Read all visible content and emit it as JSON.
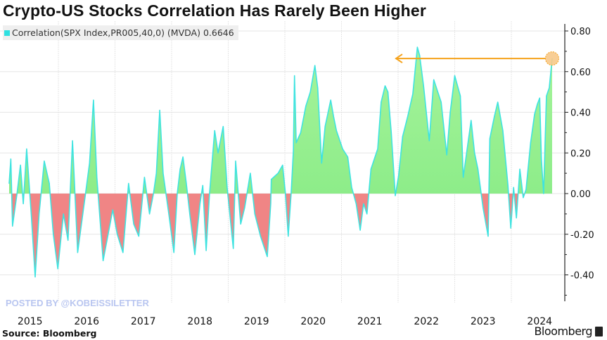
{
  "chart_data": {
    "type": "area",
    "title": "Crypto-US Stocks Correlation Has Rarely Been Higher",
    "legend": {
      "label": "Correlation(SPX Index,PR005,40,0) (MVDA) 0.6646",
      "placement": "top-left"
    },
    "source": "Source: Bloomberg",
    "brand": "Bloomberg",
    "watermark": "POSTED BY @KOBEISSILETTER",
    "x_tick_labels": [
      "2015",
      "2016",
      "2017",
      "2018",
      "2019",
      "2020",
      "2021",
      "2022",
      "2023",
      "2024"
    ],
    "y_tick_labels": [
      "0.80",
      "0.60",
      "0.40",
      "0.20",
      "0.00",
      "-0.20",
      "-0.40"
    ],
    "y_ticks": [
      0.8,
      0.6,
      0.4,
      0.2,
      0.0,
      -0.2,
      -0.4
    ],
    "ylim": [
      -0.52,
      0.84
    ],
    "xlim": [
      2015.0,
      2024.95
    ],
    "y_axis_side": "right",
    "grid": true,
    "colors": {
      "line": "#3fe3e0",
      "positive_fill": "#8ef08a",
      "negative_fill": "#f08585",
      "annotation": "#f5a21b",
      "marker_fill": "#f7c98a"
    },
    "annotation": {
      "type": "arrow",
      "from_x": 2024.72,
      "to_x": 2021.95,
      "y": 0.6646,
      "marker": "circle-at-latest-value"
    },
    "series": [
      {
        "x": [
          2015.13,
          2015.16,
          2015.19,
          2015.27,
          2015.33,
          2015.38,
          2015.44,
          2015.52,
          2015.59,
          2015.66,
          2015.75,
          2015.84,
          2015.91,
          2015.99,
          2016.09,
          2016.17,
          2016.25,
          2016.34,
          2016.48,
          2016.55,
          2016.62,
          2016.68,
          2016.79,
          2016.96,
          2017.04,
          2017.14,
          2017.24,
          2017.33,
          2017.42,
          2017.52,
          2017.61,
          2017.68,
          2017.73,
          2017.79,
          2017.85,
          2017.95,
          2018.04,
          2018.1,
          2018.15,
          2018.2,
          2018.26,
          2018.32,
          2018.41,
          2018.5,
          2018.55,
          2018.61,
          2018.67,
          2018.76,
          2018.82,
          2018.91,
          2018.98,
          2019.09,
          2019.13,
          2019.22,
          2019.29,
          2019.39,
          2019.47,
          2019.57,
          2019.69,
          2019.75,
          2019.76,
          2019.88,
          2019.96,
          2020.01,
          2020.06,
          2020.11,
          2020.15,
          2020.17,
          2020.2,
          2020.28,
          2020.37,
          2020.45,
          2020.53,
          2020.58,
          2020.65,
          2020.71,
          2020.81,
          2020.86,
          2020.91,
          2021.02,
          2021.11,
          2021.18,
          2021.26,
          2021.33,
          2021.39,
          2021.45,
          2021.52,
          2021.64,
          2021.7,
          2021.77,
          2021.82,
          2021.88,
          2021.95,
          2022.01,
          2022.08,
          2022.17,
          2022.26,
          2022.34,
          2022.38,
          2022.45,
          2022.55,
          2022.63,
          2022.7,
          2022.76,
          2022.86,
          2022.92,
          2023.0,
          2023.1,
          2023.15,
          2023.22,
          2023.29,
          2023.35,
          2023.41,
          2023.5,
          2023.59,
          2023.62,
          2023.7,
          2023.76,
          2023.85,
          2023.94,
          2023.99,
          2024.04,
          2024.09,
          2024.15,
          2024.21,
          2024.26,
          2024.34,
          2024.41,
          2024.46,
          2024.5,
          2024.53,
          2024.57,
          2024.62,
          2024.67,
          2024.72
        ],
        "values": [
          0.05,
          0.17,
          -0.16,
          0.0,
          0.14,
          -0.05,
          0.22,
          -0.1,
          -0.41,
          -0.1,
          0.16,
          0.05,
          -0.2,
          -0.37,
          -0.1,
          -0.23,
          0.26,
          -0.29,
          0.0,
          0.15,
          0.46,
          0.08,
          -0.33,
          -0.08,
          -0.2,
          -0.29,
          0.05,
          -0.15,
          -0.21,
          0.08,
          -0.1,
          0.0,
          0.1,
          0.41,
          0.1,
          -0.1,
          -0.29,
          0.0,
          0.12,
          0.18,
          0.05,
          -0.1,
          -0.3,
          -0.05,
          0.04,
          -0.28,
          0.0,
          0.31,
          0.2,
          0.33,
          0.03,
          -0.27,
          0.16,
          -0.15,
          -0.07,
          0.1,
          -0.1,
          -0.21,
          -0.31,
          -0.05,
          0.07,
          0.1,
          0.14,
          0.0,
          -0.21,
          0.0,
          0.21,
          0.58,
          0.25,
          0.3,
          0.43,
          0.5,
          0.63,
          0.52,
          0.15,
          0.33,
          0.46,
          0.38,
          0.31,
          0.22,
          0.18,
          0.03,
          -0.05,
          -0.18,
          -0.05,
          -0.1,
          0.12,
          0.22,
          0.45,
          0.53,
          0.5,
          0.3,
          -0.01,
          0.09,
          0.28,
          0.38,
          0.49,
          0.72,
          0.68,
          0.53,
          0.26,
          0.56,
          0.5,
          0.45,
          0.19,
          0.4,
          0.58,
          0.48,
          0.08,
          0.22,
          0.36,
          0.2,
          0.12,
          -0.07,
          -0.21,
          0.27,
          0.38,
          0.45,
          0.31,
          0.04,
          -0.17,
          0.03,
          -0.12,
          0.12,
          -0.02,
          0.02,
          0.25,
          0.39,
          0.44,
          0.47,
          0.17,
          0.0,
          0.48,
          0.52,
          0.6646
        ]
      }
    ]
  }
}
